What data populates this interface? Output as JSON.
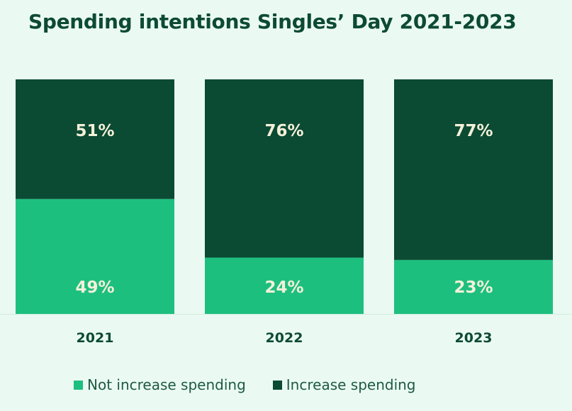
{
  "chart_data": {
    "type": "bar",
    "stacked": true,
    "title": "Spending intentions Singles’ Day 2021-2023",
    "categories": [
      "2021",
      "2022",
      "2023"
    ],
    "series": [
      {
        "name": "Not increase spending",
        "values": [
          49,
          24,
          23
        ],
        "labels": [
          "49%",
          "24%",
          "23%"
        ],
        "color": "#1dbf7f"
      },
      {
        "name": "Increase spending",
        "values": [
          51,
          76,
          77
        ],
        "labels": [
          "51%",
          "76%",
          "77%"
        ],
        "color": "#0b4a33"
      }
    ],
    "ylim": [
      0,
      100
    ],
    "label_color": "#f4f0d9",
    "legend_position": "bottom",
    "grid": false
  }
}
